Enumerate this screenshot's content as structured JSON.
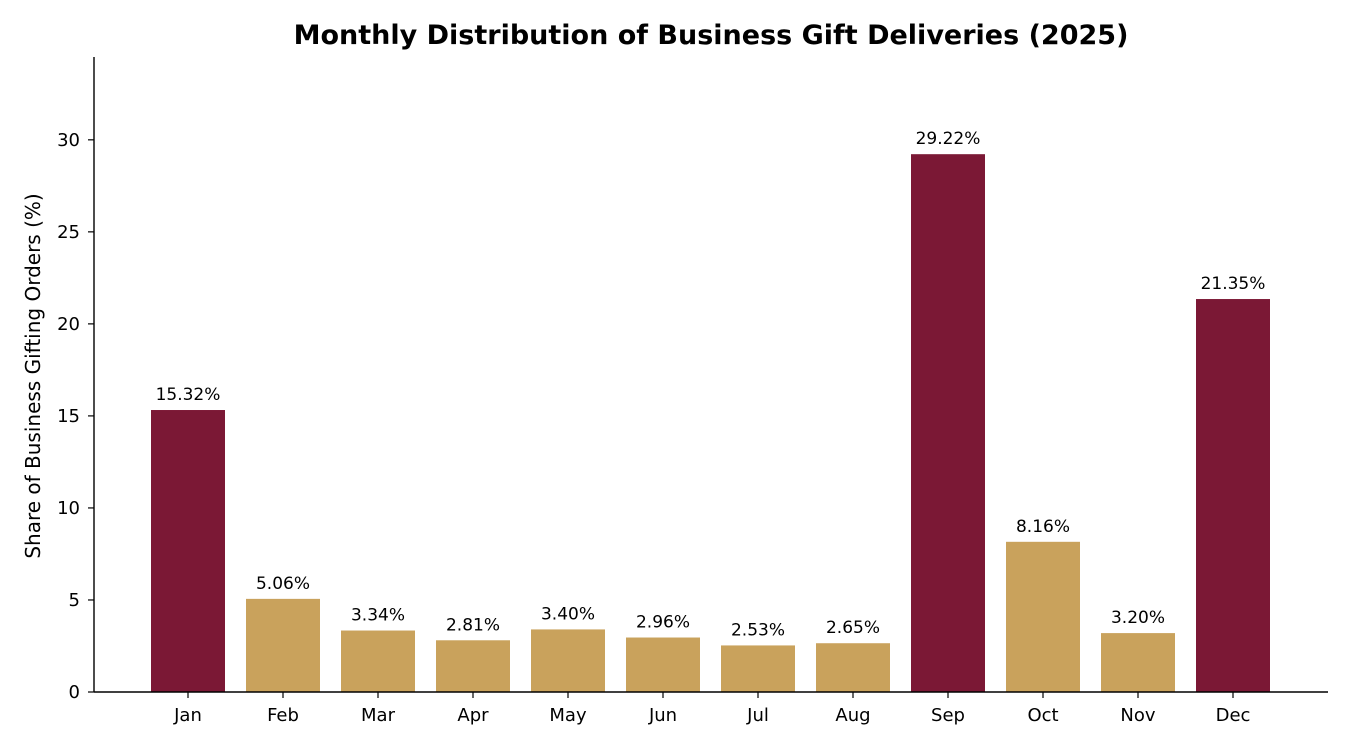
{
  "chart_data": {
    "type": "bar",
    "title": "Monthly Distribution of Business Gift Deliveries (2025)",
    "xlabel": "",
    "ylabel": "Share of Business Gifting Orders (%)",
    "categories": [
      "Jan",
      "Feb",
      "Mar",
      "Apr",
      "May",
      "Jun",
      "Jul",
      "Aug",
      "Sep",
      "Oct",
      "Nov",
      "Dec"
    ],
    "values": [
      15.32,
      5.06,
      3.34,
      2.81,
      3.4,
      2.96,
      2.53,
      2.65,
      29.22,
      8.16,
      3.2,
      21.35
    ],
    "data_labels": [
      "15.32%",
      "5.06%",
      "3.34%",
      "2.81%",
      "3.40%",
      "2.96%",
      "2.53%",
      "2.65%",
      "29.22%",
      "8.16%",
      "3.20%",
      "21.35%"
    ],
    "highlighted_months": [
      "Jan",
      "Sep",
      "Dec"
    ],
    "ylim": [
      0,
      34.5
    ],
    "yticks": [
      0,
      5,
      10,
      15,
      20,
      25,
      30
    ],
    "grid": false,
    "legend": "none",
    "colors": {
      "highlight": "#7b1835",
      "normal": "#c9a25c",
      "axis": "#000000",
      "background": "#ffffff"
    }
  }
}
